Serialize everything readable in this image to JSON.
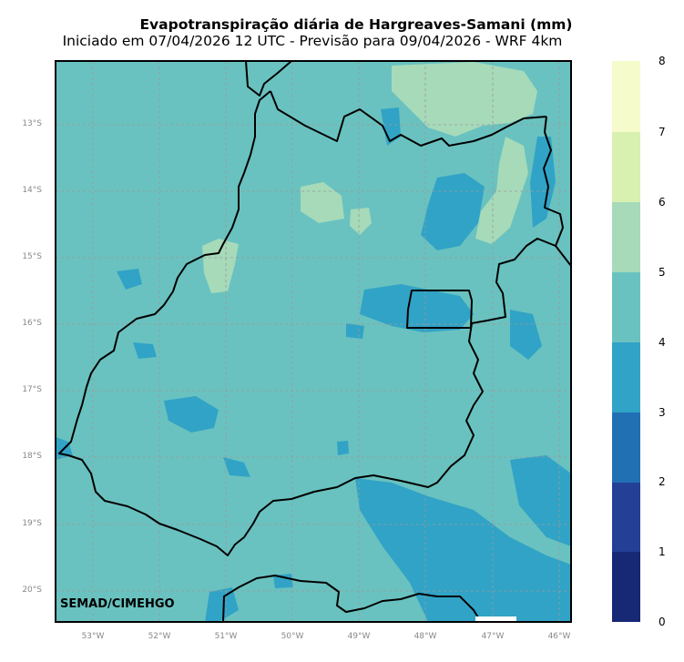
{
  "title": "Evapotranspiração diária de Hargreaves-Samani (mm)",
  "subtitle": "Iniciado em 07/04/2026 12 UTC - Previsão para 09/04/2026 - WRF 4km",
  "credit": "SEMAD/CIMEHGO",
  "latitude_labels": [
    "13°S",
    "14°S",
    "15°S",
    "16°S",
    "17°S",
    "18°S",
    "19°S",
    "20°S"
  ],
  "longitude_labels": [
    "53°W",
    "52°W",
    "51°W",
    "50°W",
    "49°W",
    "48°W",
    "47°W",
    "46°W"
  ],
  "colorbar": {
    "ticks": [
      "0",
      "1",
      "2",
      "3",
      "4",
      "5",
      "6",
      "7",
      "8"
    ],
    "colors": [
      "#172874",
      "#233f96",
      "#2270b4",
      "#31a3c6",
      "#69c2c0",
      "#a6dab9",
      "#d8f0b0",
      "#f5fbca"
    ]
  },
  "chart_data": {
    "type": "heatmap",
    "variable": "Evapotranspiração diária de Hargreaves-Samani",
    "unit": "mm",
    "color_range": [
      0,
      8
    ],
    "lon_range": [
      -53.55,
      -45.85
    ],
    "lat_range": [
      -20.45,
      -12.1
    ],
    "grid": true,
    "dominant_class": "4-5 mm",
    "secondary_classes": [
      "3-4 mm",
      "5-6 mm"
    ]
  }
}
